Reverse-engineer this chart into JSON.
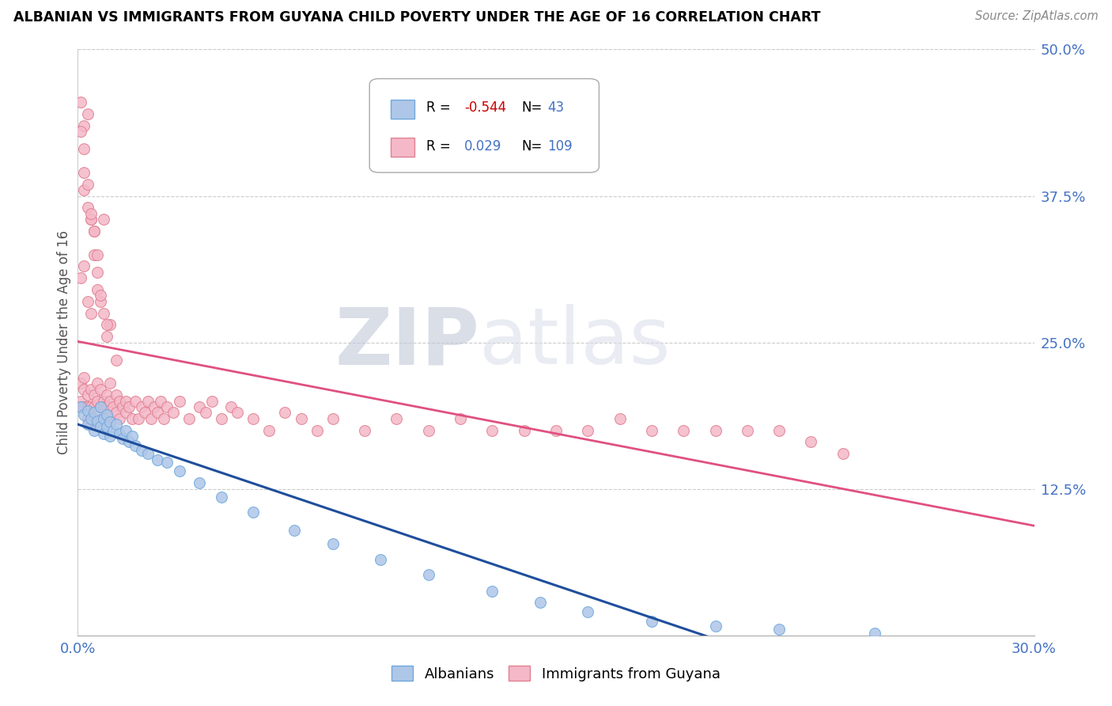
{
  "title": "ALBANIAN VS IMMIGRANTS FROM GUYANA CHILD POVERTY UNDER THE AGE OF 16 CORRELATION CHART",
  "source": "Source: ZipAtlas.com",
  "ylabel": "Child Poverty Under the Age of 16",
  "xlim": [
    0.0,
    0.3
  ],
  "ylim": [
    0.0,
    0.5
  ],
  "xtick_labels": [
    "0.0%",
    "30.0%"
  ],
  "xtick_vals": [
    0.0,
    0.3
  ],
  "ytick_labels_right": [
    "12.5%",
    "25.0%",
    "37.5%",
    "50.0%"
  ],
  "yticks_right": [
    0.125,
    0.25,
    0.375,
    0.5
  ],
  "watermark_zip": "ZIP",
  "watermark_atlas": "atlas",
  "blue_trend_color": "#1f4e9c",
  "pink_trend_color": "#e05080",
  "dot_blue_face": "#aec6e8",
  "dot_blue_edge": "#6fa8dc",
  "dot_pink_face": "#f4b8c8",
  "dot_pink_edge": "#e08090",
  "legend_R_neg_color": "#cc0000",
  "legend_R_pos_color": "#4472c4",
  "legend_N_color": "#4472c4",
  "tick_color": "#4472c4",
  "albanians_x": [
    0.001,
    0.002,
    0.003,
    0.003,
    0.004,
    0.005,
    0.005,
    0.006,
    0.007,
    0.007,
    0.008,
    0.008,
    0.009,
    0.009,
    0.01,
    0.01,
    0.011,
    0.012,
    0.013,
    0.014,
    0.015,
    0.016,
    0.017,
    0.018,
    0.02,
    0.022,
    0.025,
    0.028,
    0.032,
    0.038,
    0.045,
    0.055,
    0.068,
    0.08,
    0.095,
    0.11,
    0.13,
    0.145,
    0.16,
    0.18,
    0.2,
    0.22,
    0.25
  ],
  "albanians_y": [
    0.195,
    0.188,
    0.192,
    0.18,
    0.185,
    0.175,
    0.19,
    0.183,
    0.178,
    0.195,
    0.172,
    0.185,
    0.188,
    0.178,
    0.182,
    0.17,
    0.175,
    0.18,
    0.172,
    0.168,
    0.175,
    0.165,
    0.17,
    0.162,
    0.158,
    0.155,
    0.15,
    0.148,
    0.14,
    0.13,
    0.118,
    0.105,
    0.09,
    0.078,
    0.065,
    0.052,
    0.038,
    0.028,
    0.02,
    0.012,
    0.008,
    0.005,
    0.002
  ],
  "guyana_x": [
    0.001,
    0.001,
    0.001,
    0.002,
    0.002,
    0.002,
    0.003,
    0.003,
    0.003,
    0.004,
    0.004,
    0.004,
    0.005,
    0.005,
    0.005,
    0.006,
    0.006,
    0.007,
    0.007,
    0.008,
    0.008,
    0.008,
    0.009,
    0.009,
    0.01,
    0.01,
    0.01,
    0.011,
    0.012,
    0.012,
    0.013,
    0.013,
    0.014,
    0.015,
    0.015,
    0.016,
    0.017,
    0.018,
    0.019,
    0.02,
    0.021,
    0.022,
    0.023,
    0.024,
    0.025,
    0.026,
    0.027,
    0.028,
    0.03,
    0.032,
    0.035,
    0.038,
    0.04,
    0.042,
    0.045,
    0.048,
    0.05,
    0.055,
    0.06,
    0.065,
    0.07,
    0.075,
    0.08,
    0.09,
    0.1,
    0.11,
    0.12,
    0.13,
    0.14,
    0.15,
    0.16,
    0.17,
    0.18,
    0.19,
    0.2,
    0.21,
    0.22,
    0.23,
    0.24,
    0.001,
    0.002,
    0.003,
    0.004,
    0.005,
    0.006,
    0.007,
    0.008,
    0.009,
    0.01,
    0.012,
    0.002,
    0.003,
    0.004,
    0.005,
    0.006,
    0.001,
    0.002,
    0.003,
    0.004,
    0.001,
    0.002,
    0.002,
    0.003,
    0.004,
    0.005,
    0.006,
    0.007,
    0.008,
    0.009
  ],
  "guyana_y": [
    0.2,
    0.215,
    0.195,
    0.21,
    0.195,
    0.22,
    0.205,
    0.195,
    0.185,
    0.21,
    0.195,
    0.18,
    0.205,
    0.195,
    0.185,
    0.2,
    0.215,
    0.195,
    0.21,
    0.2,
    0.195,
    0.185,
    0.205,
    0.195,
    0.2,
    0.215,
    0.185,
    0.195,
    0.205,
    0.19,
    0.2,
    0.185,
    0.195,
    0.2,
    0.19,
    0.195,
    0.185,
    0.2,
    0.185,
    0.195,
    0.19,
    0.2,
    0.185,
    0.195,
    0.19,
    0.2,
    0.185,
    0.195,
    0.19,
    0.2,
    0.185,
    0.195,
    0.19,
    0.2,
    0.185,
    0.195,
    0.19,
    0.185,
    0.175,
    0.19,
    0.185,
    0.175,
    0.185,
    0.175,
    0.185,
    0.175,
    0.185,
    0.175,
    0.175,
    0.175,
    0.175,
    0.185,
    0.175,
    0.175,
    0.175,
    0.175,
    0.175,
    0.165,
    0.155,
    0.305,
    0.315,
    0.285,
    0.275,
    0.325,
    0.295,
    0.285,
    0.355,
    0.255,
    0.265,
    0.235,
    0.38,
    0.365,
    0.355,
    0.345,
    0.31,
    0.455,
    0.435,
    0.445,
    0.355,
    0.43,
    0.415,
    0.395,
    0.385,
    0.36,
    0.345,
    0.325,
    0.29,
    0.275,
    0.265
  ]
}
